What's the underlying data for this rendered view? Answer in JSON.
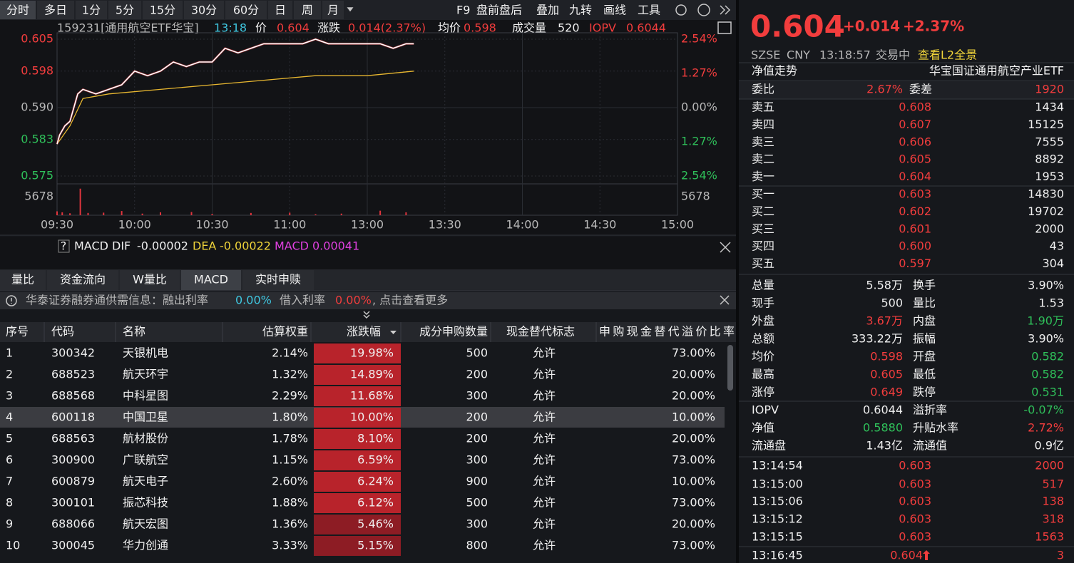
{
  "toolbar": {
    "periods": [
      "分时",
      "多日",
      "1分",
      "5分",
      "15分",
      "30分",
      "60分",
      "日",
      "周",
      "月"
    ],
    "tools": [
      "F9",
      "盘前盘后",
      "叠加",
      "九转",
      "画线",
      "工具"
    ]
  },
  "quote_header": {
    "title": "159231[通用航空ETF华宝]",
    "time": "13:18",
    "price_label": "价",
    "price": "0.604",
    "change_label": "涨跌",
    "change": "0.014(2.37%)",
    "avg_label": "均价",
    "avg": "0.598",
    "volume_label": "成交量",
    "volume": "520",
    "iopv_label": "IOPV",
    "iopv": "0.6044"
  },
  "intraday": {
    "ylim": [
      0.575,
      0.605
    ],
    "yticks": [
      {
        "value": 0.605,
        "label": "0.605"
      },
      {
        "value": 0.598,
        "label": "0.598"
      },
      {
        "value": 0.59,
        "label": "0.590"
      },
      {
        "value": 0.583,
        "label": "0.583"
      },
      {
        "value": 0.575,
        "label": "0.575"
      }
    ],
    "y2lim": [
      -2.54,
      2.54
    ],
    "y2ticks": [
      {
        "value": 2.54,
        "label": "2.54%"
      },
      {
        "value": 1.27,
        "label": "1.27%"
      },
      {
        "value": 0,
        "label": "0.00%"
      },
      {
        "value": -1.27,
        "label": "1.27%"
      },
      {
        "value": -2.54,
        "label": "2.54%"
      }
    ],
    "xlim": [
      0,
      240
    ],
    "xticks": [
      {
        "value": 0,
        "label": "09:30"
      },
      {
        "value": 30,
        "label": "10:00"
      },
      {
        "value": 60,
        "label": "10:30"
      },
      {
        "value": 90,
        "label": "11:00"
      },
      {
        "value": 120,
        "label": "13:00"
      },
      {
        "value": 150,
        "label": "13:30"
      },
      {
        "value": 180,
        "label": "14:00"
      },
      {
        "value": 210,
        "label": "14:30"
      },
      {
        "value": 240,
        "label": "15:00"
      }
    ],
    "price": {
      "color": "#ffffff",
      "x": [
        0,
        1,
        3,
        5,
        8,
        10,
        15,
        20,
        25,
        30,
        35,
        40,
        45,
        50,
        55,
        60,
        65,
        70,
        75,
        80,
        85,
        90,
        95,
        100,
        105,
        110,
        115,
        120,
        125,
        130,
        135,
        138
      ],
      "values": [
        0.582,
        0.584,
        0.586,
        0.587,
        0.593,
        0.594,
        0.593,
        0.594,
        0.595,
        0.598,
        0.597,
        0.598,
        0.6,
        0.599,
        0.6,
        0.6,
        0.603,
        0.602,
        0.603,
        0.604,
        0.604,
        0.604,
        0.604,
        0.605,
        0.604,
        0.604,
        0.604,
        0.604,
        0.604,
        0.603,
        0.604,
        0.604
      ]
    },
    "average": {
      "color": "#e8b730",
      "x": [
        0,
        5,
        10,
        20,
        40,
        60,
        80,
        100,
        120,
        138
      ],
      "values": [
        0.582,
        0.586,
        0.592,
        0.593,
        0.594,
        0.595,
        0.596,
        0.597,
        0.597,
        0.598
      ]
    },
    "volume": {
      "ylim": [
        0,
        8800
      ],
      "yticks": [
        5678
      ],
      "color": "#e0353d",
      "x": [
        0,
        2,
        5,
        9,
        12,
        18,
        25,
        33,
        40,
        52,
        60,
        75,
        90,
        100,
        110,
        125,
        135
      ],
      "values": [
        1200,
        900,
        600,
        8200,
        700,
        800,
        1300,
        500,
        900,
        1000,
        400,
        700,
        800,
        300,
        500,
        1400,
        900
      ]
    }
  },
  "indicator": {
    "help": "?",
    "name": "MACD",
    "dif_label": "DIF",
    "dif": "-0.00002",
    "dea_label": "DEA",
    "dea": "-0.00022",
    "macd_label": "MACD",
    "macd": "0.00041"
  },
  "tabs": [
    "量比",
    "资金流向",
    "W量比",
    "MACD",
    "实时申赎"
  ],
  "notice": {
    "text": "华泰证券融券通供需信息：融出利率",
    "lend_rate": "0.00%",
    "borrow_label": "借入利率",
    "borrow_rate": "0.00%",
    "more": ", 点击查看更多"
  },
  "table": {
    "headers": [
      "序号",
      "代码",
      "名称",
      "估算权重",
      "涨跌幅",
      "成分申购数量",
      "现金替代标志",
      "申购现金替代溢价比率"
    ],
    "rows": [
      [
        "1",
        "300342",
        "天银机电",
        "2.14%",
        "19.98%",
        "500",
        "允许",
        "73.00%"
      ],
      [
        "2",
        "688523",
        "航天环宇",
        "1.32%",
        "14.89%",
        "200",
        "允许",
        "20.00%"
      ],
      [
        "3",
        "688568",
        "中科星图",
        "2.29%",
        "11.68%",
        "300",
        "允许",
        "20.00%"
      ],
      [
        "4",
        "600118",
        "中国卫星",
        "1.80%",
        "10.00%",
        "200",
        "允许",
        "10.00%"
      ],
      [
        "5",
        "688563",
        "航材股份",
        "1.78%",
        "8.10%",
        "200",
        "允许",
        "20.00%"
      ],
      [
        "6",
        "300900",
        "广联航空",
        "1.15%",
        "6.59%",
        "300",
        "允许",
        "73.00%"
      ],
      [
        "7",
        "600879",
        "航天电子",
        "2.60%",
        "6.24%",
        "900",
        "允许",
        "10.00%"
      ],
      [
        "8",
        "300101",
        "振芯科技",
        "1.88%",
        "6.12%",
        "500",
        "允许",
        "73.00%"
      ],
      [
        "9",
        "688066",
        "航天宏图",
        "1.36%",
        "5.46%",
        "300",
        "允许",
        "20.00%"
      ],
      [
        "10",
        "300045",
        "华力创通",
        "3.33%",
        "5.15%",
        "800",
        "允许",
        "73.00%"
      ]
    ]
  },
  "quote": {
    "price": "0.604",
    "change": "+0.014",
    "change_pct": "+2.37%",
    "exchange": "SZSE",
    "currency": "CNY",
    "time": "13:18:57",
    "status": "交易中",
    "l2_link": "查看L2全景",
    "nav_trend": "净值走势",
    "fund_name": "华宝国证通用航空产业ETF",
    "order_ratio_label": "委比",
    "order_ratio": "2.67%",
    "order_diff_label": "委差",
    "order_diff": "1920",
    "asks": [
      [
        "卖五",
        "0.608",
        "1434"
      ],
      [
        "卖四",
        "0.607",
        "15125"
      ],
      [
        "卖三",
        "0.606",
        "7555"
      ],
      [
        "卖二",
        "0.605",
        "8892"
      ],
      [
        "卖一",
        "0.604",
        "1953"
      ]
    ],
    "bids": [
      [
        "买一",
        "0.603",
        "14830"
      ],
      [
        "买二",
        "0.602",
        "19702"
      ],
      [
        "买三",
        "0.601",
        "2000"
      ],
      [
        "买四",
        "0.600",
        "43"
      ],
      [
        "买五",
        "0.597",
        "304"
      ]
    ],
    "stats": [
      [
        "总量",
        "5.58万",
        "换手",
        "3.90%"
      ],
      [
        "现手",
        "500",
        "量比",
        "1.53"
      ],
      [
        "外盘",
        "3.67万",
        "内盘",
        "1.90万"
      ],
      [
        "总额",
        "333.22万",
        "振幅",
        "3.90%"
      ],
      [
        "均价",
        "0.598",
        "开盘",
        "0.582"
      ],
      [
        "最高",
        "0.605",
        "最低",
        "0.582"
      ],
      [
        "涨停",
        "0.649",
        "跌停",
        "0.531"
      ],
      [
        "IOPV",
        "0.6044",
        "溢折率",
        "-0.07%"
      ],
      [
        "净值",
        "0.5880",
        "升贴水率",
        "2.72%"
      ],
      [
        "流通盘",
        "1.43亿",
        "流通值",
        "0.9亿"
      ]
    ],
    "trades": [
      [
        "13:14:54",
        "0.603",
        "2000"
      ],
      [
        "13:15:00",
        "0.603",
        "517"
      ],
      [
        "13:15:06",
        "0.603",
        "138"
      ],
      [
        "13:15:12",
        "0.603",
        "318"
      ],
      [
        "13:15:15",
        "0.603",
        "1563"
      ],
      [
        "13:16:45",
        "0.604",
        "3"
      ]
    ]
  }
}
